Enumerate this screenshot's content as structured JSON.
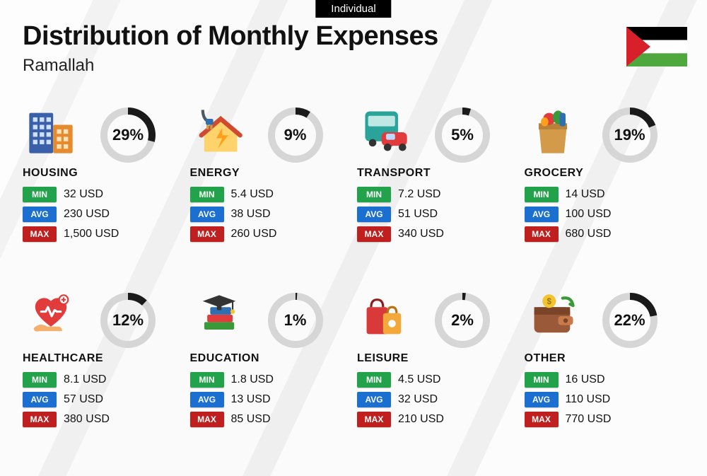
{
  "tag": "Individual",
  "title": "Distribution of Monthly Expenses",
  "subtitle": "Ramallah",
  "flag": {
    "stripes": [
      "#000000",
      "#ffffff",
      "#4fa83d"
    ],
    "triangle": "#d8202a"
  },
  "ring": {
    "radius": 34,
    "stroke_width": 10,
    "track_color": "#d6d6d6",
    "arc_color": "#1a1a1a",
    "pct_fontsize": 22
  },
  "stat_labels": {
    "min": "MIN",
    "avg": "AVG",
    "max": "MAX"
  },
  "stat_colors": {
    "min": "#22a24a",
    "avg": "#1b6fd0",
    "max": "#c01f1f"
  },
  "title_fontsize": 38,
  "subtitle_fontsize": 24,
  "category_fontsize": 16,
  "value_fontsize": 16,
  "categories": [
    {
      "key": "housing",
      "label": "HOUSING",
      "percent": 29,
      "min": "32 USD",
      "avg": "230 USD",
      "max": "1,500 USD",
      "icon": "buildings"
    },
    {
      "key": "energy",
      "label": "ENERGY",
      "percent": 9,
      "min": "5.4 USD",
      "avg": "38 USD",
      "max": "260 USD",
      "icon": "energy-house"
    },
    {
      "key": "transport",
      "label": "TRANSPORT",
      "percent": 5,
      "min": "7.2 USD",
      "avg": "51 USD",
      "max": "340 USD",
      "icon": "bus-car"
    },
    {
      "key": "grocery",
      "label": "GROCERY",
      "percent": 19,
      "min": "14 USD",
      "avg": "100 USD",
      "max": "680 USD",
      "icon": "grocery-bag"
    },
    {
      "key": "healthcare",
      "label": "HEALTHCARE",
      "percent": 12,
      "min": "8.1 USD",
      "avg": "57 USD",
      "max": "380 USD",
      "icon": "heart-hand"
    },
    {
      "key": "education",
      "label": "EDUCATION",
      "percent": 1,
      "min": "1.8 USD",
      "avg": "13 USD",
      "max": "85 USD",
      "icon": "grad-books"
    },
    {
      "key": "leisure",
      "label": "LEISURE",
      "percent": 2,
      "min": "4.5 USD",
      "avg": "32 USD",
      "max": "210 USD",
      "icon": "shopping-bags"
    },
    {
      "key": "other",
      "label": "OTHER",
      "percent": 22,
      "min": "16 USD",
      "avg": "110 USD",
      "max": "770 USD",
      "icon": "wallet"
    }
  ]
}
